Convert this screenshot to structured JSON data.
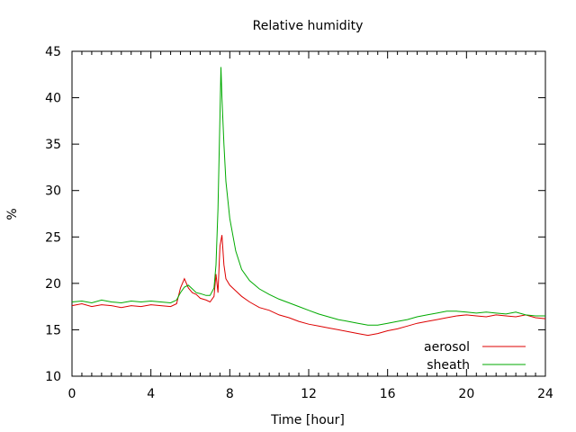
{
  "chart_data": {
    "type": "line",
    "title": "Relative humidity",
    "xlabel": "Time [hour]",
    "ylabel": "%",
    "xlim": [
      0,
      24
    ],
    "ylim": [
      10,
      45
    ],
    "xticks": [
      0,
      4,
      8,
      12,
      16,
      20,
      24
    ],
    "yticks": [
      10,
      15,
      20,
      25,
      30,
      35,
      40,
      45
    ],
    "grid": false,
    "legend_position": "bottom-right",
    "series": [
      {
        "name": "aerosol",
        "color": "#dd0000",
        "x": [
          0,
          0.5,
          1,
          1.5,
          2,
          2.5,
          3,
          3.5,
          4,
          4.5,
          5,
          5.3,
          5.5,
          5.7,
          5.9,
          6.1,
          6.3,
          6.5,
          6.8,
          7.0,
          7.2,
          7.3,
          7.4,
          7.5,
          7.6,
          7.7,
          7.8,
          8.0,
          8.3,
          8.6,
          9.0,
          9.5,
          10,
          10.5,
          11,
          11.5,
          12,
          12.5,
          13,
          13.5,
          14,
          14.5,
          15,
          15.5,
          16,
          16.5,
          17,
          17.5,
          18,
          18.5,
          19,
          19.5,
          20,
          20.5,
          21,
          21.5,
          22,
          22.5,
          23,
          23.5,
          24
        ],
        "values": [
          17.6,
          17.8,
          17.5,
          17.7,
          17.6,
          17.4,
          17.6,
          17.5,
          17.7,
          17.6,
          17.5,
          17.8,
          19.5,
          20.5,
          19.5,
          19.0,
          18.8,
          18.4,
          18.2,
          18.0,
          18.6,
          21.0,
          19.0,
          24.0,
          25.2,
          22.0,
          20.5,
          19.8,
          19.2,
          18.6,
          18.0,
          17.4,
          17.1,
          16.6,
          16.3,
          15.9,
          15.6,
          15.4,
          15.2,
          15.0,
          14.8,
          14.6,
          14.4,
          14.6,
          14.9,
          15.1,
          15.4,
          15.7,
          15.9,
          16.1,
          16.3,
          16.5,
          16.6,
          16.5,
          16.4,
          16.6,
          16.5,
          16.4,
          16.6,
          16.3,
          16.2
        ]
      },
      {
        "name": "sheath",
        "color": "#00aa00",
        "x": [
          0,
          0.5,
          1,
          1.5,
          2,
          2.5,
          3,
          3.5,
          4,
          4.5,
          5,
          5.3,
          5.5,
          5.7,
          5.9,
          6.1,
          6.3,
          6.5,
          6.8,
          7.0,
          7.2,
          7.3,
          7.4,
          7.5,
          7.55,
          7.6,
          7.7,
          7.8,
          8.0,
          8.3,
          8.6,
          9.0,
          9.5,
          10,
          10.5,
          11,
          11.5,
          12,
          12.5,
          13,
          13.5,
          14,
          14.5,
          15,
          15.5,
          16,
          16.5,
          17,
          17.5,
          18,
          18.5,
          19,
          19.5,
          20,
          20.5,
          21,
          21.5,
          22,
          22.5,
          23,
          23.5,
          24
        ],
        "values": [
          18.0,
          18.1,
          17.9,
          18.2,
          18.0,
          17.9,
          18.1,
          18.0,
          18.1,
          18.0,
          17.9,
          18.2,
          19.0,
          19.6,
          19.8,
          19.4,
          19.0,
          18.9,
          18.7,
          18.7,
          19.5,
          22.0,
          28.0,
          38.0,
          43.3,
          40.0,
          35.0,
          31.0,
          27.0,
          23.5,
          21.5,
          20.3,
          19.4,
          18.8,
          18.3,
          17.9,
          17.5,
          17.1,
          16.7,
          16.4,
          16.1,
          15.9,
          15.7,
          15.5,
          15.5,
          15.7,
          15.9,
          16.1,
          16.4,
          16.6,
          16.8,
          17.0,
          17.0,
          16.9,
          16.8,
          16.9,
          16.8,
          16.7,
          16.9,
          16.6,
          16.5,
          16.5
        ]
      }
    ]
  }
}
